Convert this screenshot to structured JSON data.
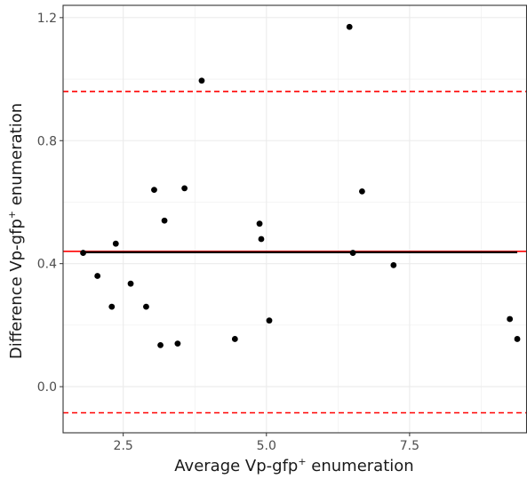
{
  "chart_data": {
    "type": "scatter",
    "title": "",
    "xlabel": {
      "pre": "Average Vp-gfp",
      "sup": "+",
      "post": " enumeration"
    },
    "ylabel": {
      "pre": "Difference Vp-gfp",
      "sup": "+",
      "post": " enumeration"
    },
    "xlim": [
      1.45,
      9.55
    ],
    "ylim": [
      -0.15,
      1.24
    ],
    "xticks": [
      2.5,
      5.0,
      7.5
    ],
    "xtick_labels": [
      "2.5",
      "5.0",
      "7.5"
    ],
    "yticks": [
      0.0,
      0.4,
      0.8,
      1.2
    ],
    "ytick_labels": [
      "0.0",
      "0.4",
      "0.8",
      "1.2"
    ],
    "grid": true,
    "points": [
      {
        "x": 1.8,
        "y": 0.435
      },
      {
        "x": 2.05,
        "y": 0.36
      },
      {
        "x": 2.3,
        "y": 0.26
      },
      {
        "x": 2.37,
        "y": 0.465
      },
      {
        "x": 2.63,
        "y": 0.335
      },
      {
        "x": 2.9,
        "y": 0.26
      },
      {
        "x": 3.04,
        "y": 0.64
      },
      {
        "x": 3.15,
        "y": 0.135
      },
      {
        "x": 3.22,
        "y": 0.54
      },
      {
        "x": 3.45,
        "y": 0.14
      },
      {
        "x": 3.57,
        "y": 0.645
      },
      {
        "x": 3.87,
        "y": 0.995
      },
      {
        "x": 4.45,
        "y": 0.155
      },
      {
        "x": 4.88,
        "y": 0.53
      },
      {
        "x": 4.91,
        "y": 0.48
      },
      {
        "x": 5.05,
        "y": 0.215
      },
      {
        "x": 6.45,
        "y": 1.17
      },
      {
        "x": 6.51,
        "y": 0.435
      },
      {
        "x": 6.67,
        "y": 0.635
      },
      {
        "x": 7.22,
        "y": 0.395
      },
      {
        "x": 9.25,
        "y": 0.22
      },
      {
        "x": 9.38,
        "y": 0.155
      }
    ],
    "lines": [
      {
        "role": "mean-difference",
        "y": 0.44,
        "color": "#ff0000",
        "style": "solid"
      },
      {
        "role": "upper-limit",
        "y": 0.96,
        "color": "#ff0000",
        "style": "dashed"
      },
      {
        "role": "lower-limit",
        "y": -0.085,
        "color": "#ff0000",
        "style": "dashed"
      },
      {
        "role": "fit",
        "x": [
          1.8,
          9.38
        ],
        "y": [
          0.437,
          0.437
        ],
        "color": "#000000",
        "style": "solid"
      }
    ],
    "colors": {
      "points": "#000000",
      "grid": "#ebebeb",
      "panel_border": "#333333",
      "reference": "#ff0000"
    }
  }
}
